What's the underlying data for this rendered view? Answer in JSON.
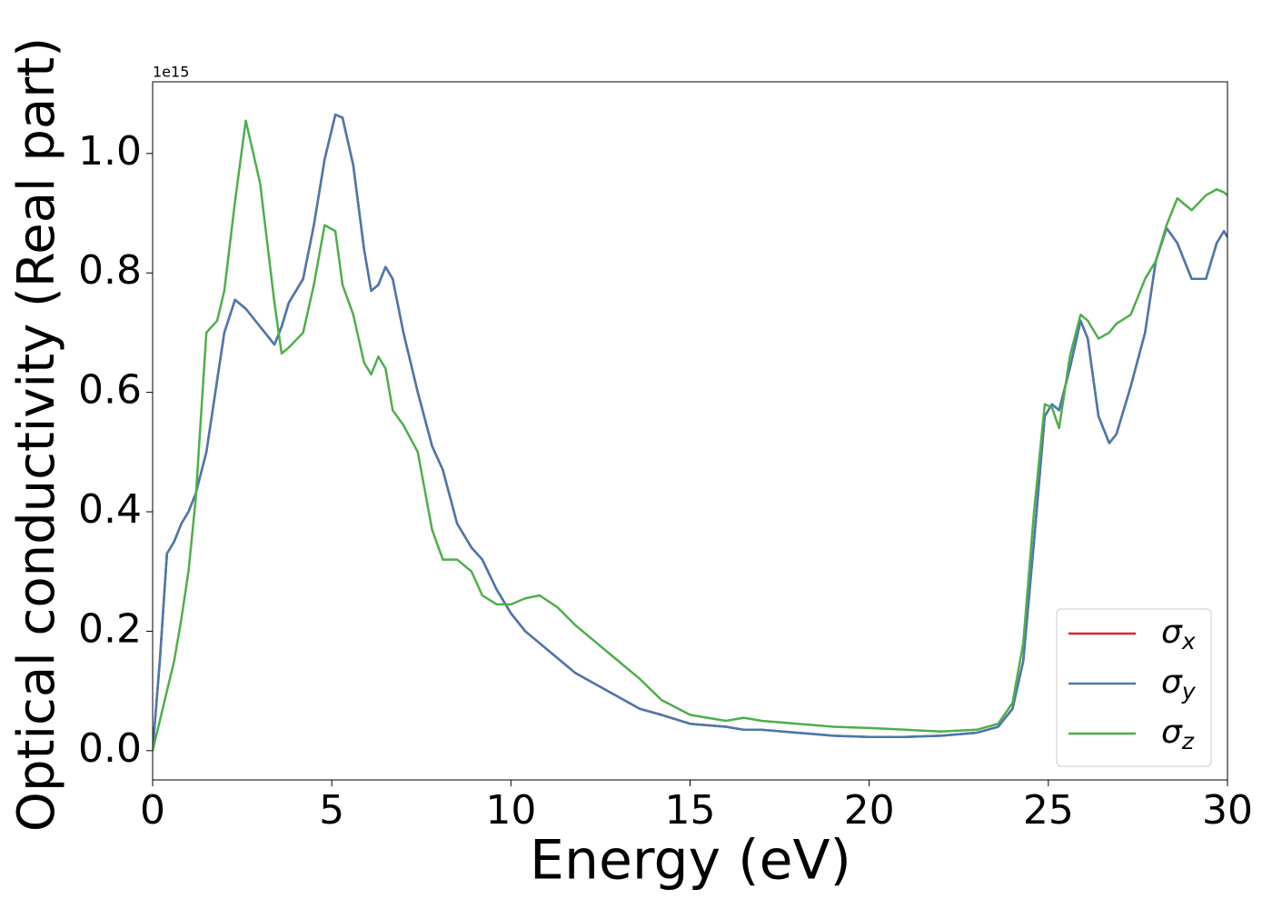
{
  "chart_data": {
    "type": "line",
    "xlabel": "Energy (eV)",
    "ylabel": "Optical conductivity (Real part)",
    "y_offset_label": "1e15",
    "xlim": [
      0,
      30
    ],
    "ylim": [
      -0.049,
      1.12
    ],
    "xticks": [
      0,
      5,
      10,
      15,
      20,
      25,
      30
    ],
    "yticks": [
      {
        "value": 0,
        "label": "0.0"
      },
      {
        "value": 0.2,
        "label": "0.2"
      },
      {
        "value": 0.4,
        "label": "0.4"
      },
      {
        "value": 0.6,
        "label": "0.6"
      },
      {
        "value": 0.8,
        "label": "0.8"
      },
      {
        "value": 1.0,
        "label": "1.0"
      }
    ],
    "legend": "lower right",
    "x": [
      0,
      0.2,
      0.4,
      0.6,
      0.8,
      1.0,
      1.2,
      1.5,
      1.8,
      2.0,
      2.3,
      2.6,
      3.0,
      3.4,
      3.6,
      3.8,
      4.2,
      4.5,
      4.8,
      5.1,
      5.3,
      5.6,
      5.9,
      6.1,
      6.3,
      6.5,
      6.7,
      7.0,
      7.4,
      7.8,
      8.1,
      8.5,
      8.9,
      9.2,
      9.6,
      10.0,
      10.4,
      10.8,
      11.3,
      11.8,
      12.4,
      13.0,
      13.6,
      14.2,
      15.0,
      16.0,
      16.5,
      17.0,
      18.0,
      19.0,
      20,
      21,
      22,
      23,
      23.6,
      24.0,
      24.3,
      24.6,
      24.9,
      25.1,
      25.3,
      25.6,
      25.9,
      26.1,
      26.4,
      26.7,
      26.9,
      27.3,
      27.7,
      28.0,
      28.3,
      28.6,
      29.0,
      29.4,
      29.7,
      29.9,
      30.0
    ],
    "series": [
      {
        "name": "σx",
        "color": "#d62728",
        "values": [
          0,
          0.15,
          0.33,
          0.35,
          0.38,
          0.4,
          0.43,
          0.5,
          0.62,
          0.7,
          0.755,
          0.74,
          0.71,
          0.68,
          0.71,
          0.75,
          0.79,
          0.88,
          0.99,
          1.065,
          1.06,
          0.98,
          0.84,
          0.77,
          0.78,
          0.81,
          0.79,
          0.7,
          0.6,
          0.51,
          0.47,
          0.38,
          0.34,
          0.32,
          0.27,
          0.23,
          0.2,
          0.18,
          0.155,
          0.13,
          0.11,
          0.09,
          0.07,
          0.06,
          0.045,
          0.04,
          0.035,
          0.035,
          0.03,
          0.025,
          0.023,
          0.023,
          0.025,
          0.03,
          0.04,
          0.07,
          0.15,
          0.35,
          0.56,
          0.58,
          0.57,
          0.64,
          0.72,
          0.69,
          0.56,
          0.515,
          0.53,
          0.61,
          0.7,
          0.82,
          0.875,
          0.85,
          0.79,
          0.79,
          0.85,
          0.87,
          0.86
        ]
      },
      {
        "name": "σy",
        "color": "#4a78b0",
        "values": [
          0,
          0.15,
          0.33,
          0.35,
          0.38,
          0.4,
          0.43,
          0.5,
          0.62,
          0.7,
          0.755,
          0.74,
          0.71,
          0.68,
          0.71,
          0.75,
          0.79,
          0.88,
          0.99,
          1.065,
          1.06,
          0.98,
          0.84,
          0.77,
          0.78,
          0.81,
          0.79,
          0.7,
          0.6,
          0.51,
          0.47,
          0.38,
          0.34,
          0.32,
          0.27,
          0.23,
          0.2,
          0.18,
          0.155,
          0.13,
          0.11,
          0.09,
          0.07,
          0.06,
          0.045,
          0.04,
          0.035,
          0.035,
          0.03,
          0.025,
          0.023,
          0.023,
          0.025,
          0.03,
          0.04,
          0.07,
          0.15,
          0.35,
          0.56,
          0.58,
          0.57,
          0.64,
          0.72,
          0.69,
          0.56,
          0.515,
          0.53,
          0.61,
          0.7,
          0.82,
          0.875,
          0.85,
          0.79,
          0.79,
          0.85,
          0.87,
          0.86
        ]
      },
      {
        "name": "σz",
        "color": "#4daf4a",
        "values": [
          0,
          0.05,
          0.1,
          0.15,
          0.22,
          0.3,
          0.42,
          0.7,
          0.72,
          0.77,
          0.92,
          1.055,
          0.95,
          0.75,
          0.665,
          0.675,
          0.7,
          0.78,
          0.88,
          0.87,
          0.78,
          0.73,
          0.65,
          0.63,
          0.66,
          0.64,
          0.57,
          0.545,
          0.5,
          0.37,
          0.32,
          0.32,
          0.3,
          0.26,
          0.245,
          0.245,
          0.255,
          0.26,
          0.24,
          0.21,
          0.18,
          0.15,
          0.12,
          0.085,
          0.06,
          0.05,
          0.055,
          0.05,
          0.045,
          0.04,
          0.038,
          0.035,
          0.032,
          0.035,
          0.045,
          0.08,
          0.18,
          0.4,
          0.58,
          0.575,
          0.54,
          0.66,
          0.73,
          0.72,
          0.69,
          0.7,
          0.715,
          0.73,
          0.79,
          0.82,
          0.88,
          0.925,
          0.905,
          0.93,
          0.94,
          0.935,
          0.93
        ]
      }
    ]
  }
}
